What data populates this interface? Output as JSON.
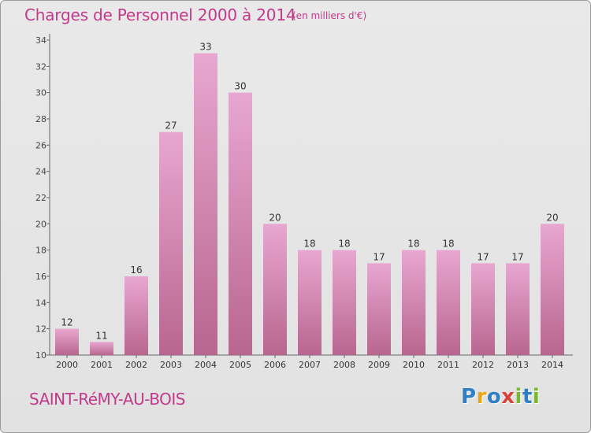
{
  "title": "Charges de Personnel 2000 à 2014",
  "subtitle": "(en milliers d'€)",
  "commune": "SAINT-RéMY-AU-BOIS",
  "logo": {
    "letters": [
      "P",
      "r",
      "o",
      "x",
      "i",
      "t",
      "i"
    ],
    "colors": [
      "#2f7fc5",
      "#e8a516",
      "#2f7fc5",
      "#d9433a",
      "#7ab72f",
      "#2f7fc5",
      "#7ab72f"
    ]
  },
  "colors": {
    "text_accent": "#c23a8a",
    "bar_top": "#e8a7d0",
    "bar_bottom": "#b8668f",
    "axis": "#666666"
  },
  "chart_data": {
    "type": "bar",
    "categories": [
      "2000",
      "2001",
      "2002",
      "2003",
      "2004",
      "2005",
      "2006",
      "2007",
      "2008",
      "2009",
      "2010",
      "2011",
      "2012",
      "2013",
      "2014"
    ],
    "values": [
      12,
      11,
      16,
      27,
      33,
      30,
      20,
      18,
      18,
      17,
      18,
      18,
      17,
      17,
      20
    ],
    "data_labels": [
      "12",
      "11",
      "16",
      "27",
      "33",
      "30",
      "20",
      "18",
      "18",
      "17",
      "18",
      "18",
      "17",
      "17",
      "20"
    ],
    "yticks": [
      10,
      12,
      14,
      16,
      18,
      20,
      22,
      24,
      26,
      28,
      30,
      32,
      34
    ],
    "ylim": [
      10,
      34
    ],
    "grid": false,
    "legend": "none"
  }
}
